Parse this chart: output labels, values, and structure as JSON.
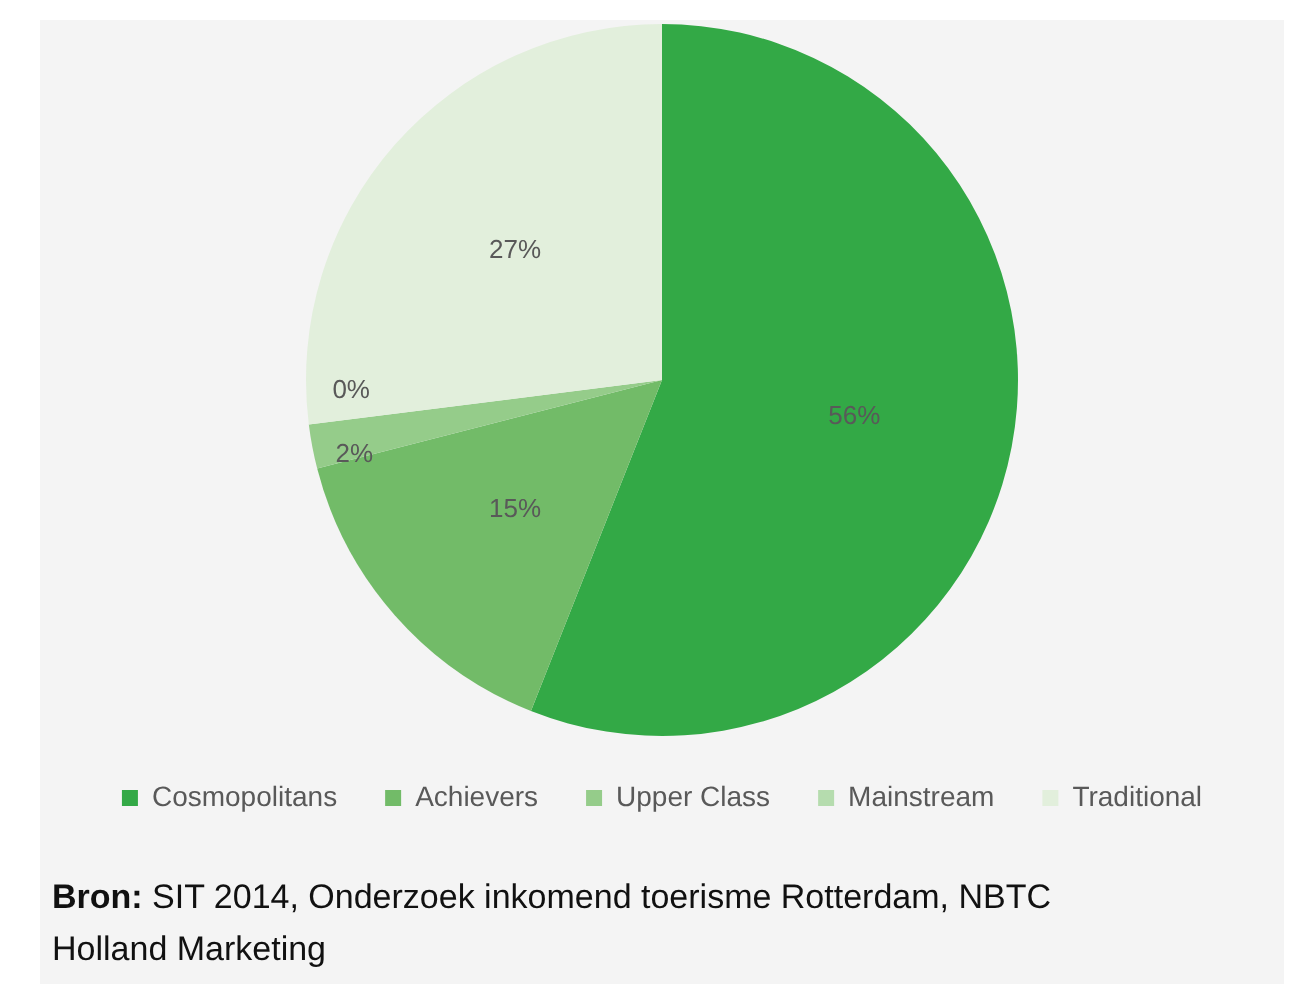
{
  "chart_data": {
    "type": "pie",
    "categories": [
      "Cosmopolitans",
      "Achievers",
      "Upper Class",
      "Mainstream",
      "Traditional"
    ],
    "values": [
      56,
      15,
      2,
      0,
      27
    ],
    "colors": [
      "#33a946",
      "#72bb68",
      "#95cc8a",
      "#b5dcae",
      "#e2efdc"
    ],
    "value_labels": [
      "56%",
      "15%",
      "2%",
      "0%",
      "27%"
    ],
    "legend": "bottom",
    "annotations": [
      "Bron: SIT 2014, Onderzoek inkomend toerisme Rotterdam, NBTC Holland Marketing"
    ]
  }
}
